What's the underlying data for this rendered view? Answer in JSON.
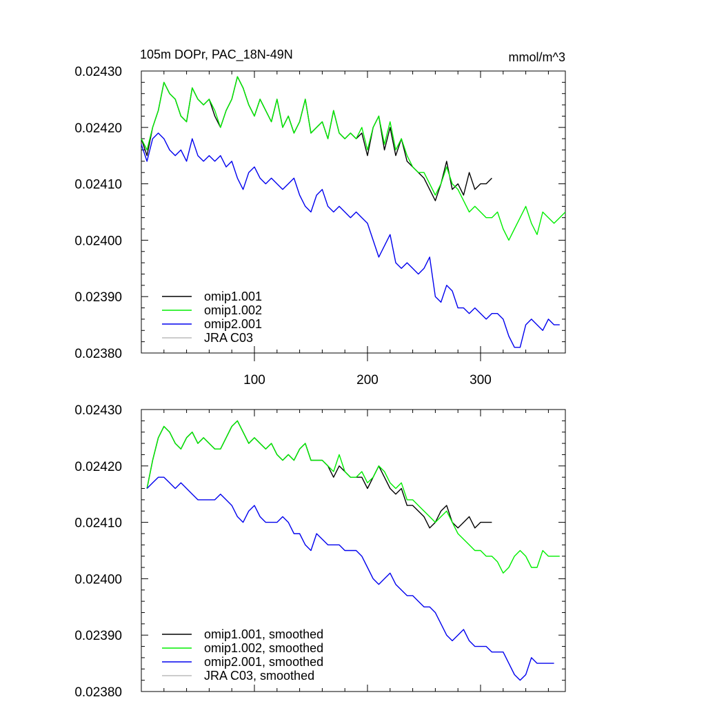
{
  "title": "105m DOPr, PAC_18N-49N",
  "units": "mmol/m^3",
  "chart_data": [
    {
      "type": "line",
      "title": "105m DOPr, PAC_18N-49N",
      "units": "mmol/m^3",
      "xlim": [
        0,
        375
      ],
      "ylim": [
        0.0238,
        0.0243
      ],
      "x_ticks": [
        100,
        200,
        300
      ],
      "x_tick_labels": [
        "100",
        "200",
        "300"
      ],
      "y_ticks": [
        0.0238,
        0.0239,
        0.024,
        0.0241,
        0.0242,
        0.0243
      ],
      "y_tick_labels": [
        "0.02380",
        "0.02390",
        "0.02400",
        "0.02410",
        "0.02420",
        "0.02430"
      ],
      "legend_position": "bottom-left",
      "series": [
        {
          "name": "omip1.001",
          "color": "#000000",
          "x": [
            0,
            5,
            10,
            15,
            20,
            25,
            30,
            35,
            40,
            45,
            50,
            55,
            60,
            65,
            70,
            75,
            80,
            85,
            90,
            95,
            100,
            105,
            110,
            115,
            120,
            125,
            130,
            135,
            140,
            145,
            150,
            155,
            160,
            165,
            170,
            175,
            180,
            185,
            190,
            195,
            200,
            205,
            210,
            215,
            220,
            225,
            230,
            235,
            240,
            245,
            250,
            255,
            260,
            265,
            270,
            275,
            280,
            285,
            290,
            295,
            300,
            305,
            310
          ],
          "y": [
            0.02418,
            0.02415,
            0.0242,
            0.02423,
            0.02428,
            0.02426,
            0.02425,
            0.02422,
            0.02421,
            0.02427,
            0.02425,
            0.02424,
            0.02425,
            0.02422,
            0.0242,
            0.02423,
            0.02425,
            0.02429,
            0.02427,
            0.02424,
            0.02422,
            0.02425,
            0.02423,
            0.02421,
            0.02425,
            0.0242,
            0.02422,
            0.02419,
            0.02421,
            0.02425,
            0.02419,
            0.0242,
            0.02421,
            0.02418,
            0.02423,
            0.02419,
            0.02418,
            0.02419,
            0.02418,
            0.02419,
            0.02415,
            0.0242,
            0.02422,
            0.02416,
            0.0242,
            0.02415,
            0.02418,
            0.02414,
            0.02413,
            0.02412,
            0.02411,
            0.02409,
            0.02407,
            0.0241,
            0.02414,
            0.02409,
            0.0241,
            0.02408,
            0.02412,
            0.02409,
            0.0241,
            0.0241,
            0.02411
          ]
        },
        {
          "name": "omip1.002",
          "color": "#00ee00",
          "x": [
            0,
            5,
            10,
            15,
            20,
            25,
            30,
            35,
            40,
            45,
            50,
            55,
            60,
            65,
            70,
            75,
            80,
            85,
            90,
            95,
            100,
            105,
            110,
            115,
            120,
            125,
            130,
            135,
            140,
            145,
            150,
            155,
            160,
            165,
            170,
            175,
            180,
            185,
            190,
            195,
            200,
            205,
            210,
            215,
            220,
            225,
            230,
            235,
            240,
            245,
            250,
            255,
            260,
            265,
            270,
            275,
            280,
            285,
            290,
            295,
            300,
            305,
            310,
            315,
            320,
            325,
            330,
            335,
            340,
            345,
            350,
            355,
            360,
            365,
            370,
            375
          ],
          "y": [
            0.02418,
            0.02416,
            0.0242,
            0.02423,
            0.02428,
            0.02426,
            0.02425,
            0.02422,
            0.02421,
            0.02427,
            0.02425,
            0.02424,
            0.02425,
            0.02423,
            0.0242,
            0.02423,
            0.02425,
            0.02429,
            0.02427,
            0.02424,
            0.02422,
            0.02425,
            0.02423,
            0.02421,
            0.02425,
            0.0242,
            0.02422,
            0.02419,
            0.02421,
            0.02425,
            0.02419,
            0.0242,
            0.02421,
            0.02418,
            0.02423,
            0.02419,
            0.02418,
            0.02419,
            0.02418,
            0.0242,
            0.02416,
            0.0242,
            0.02422,
            0.02417,
            0.02421,
            0.02416,
            0.02418,
            0.02415,
            0.02413,
            0.02412,
            0.02412,
            0.0241,
            0.02408,
            0.0241,
            0.02413,
            0.0241,
            0.02409,
            0.02407,
            0.02405,
            0.02406,
            0.02405,
            0.02404,
            0.02404,
            0.02405,
            0.02402,
            0.024,
            0.02402,
            0.02404,
            0.02406,
            0.02403,
            0.02401,
            0.02405,
            0.02404,
            0.02403,
            0.02404,
            0.02405
          ]
        },
        {
          "name": "omip2.001",
          "color": "#0000ee",
          "x": [
            0,
            5,
            10,
            15,
            20,
            25,
            30,
            35,
            40,
            45,
            50,
            55,
            60,
            65,
            70,
            75,
            80,
            85,
            90,
            95,
            100,
            105,
            110,
            115,
            120,
            125,
            130,
            135,
            140,
            145,
            150,
            155,
            160,
            165,
            170,
            175,
            180,
            185,
            190,
            195,
            200,
            205,
            210,
            215,
            220,
            225,
            230,
            235,
            240,
            245,
            250,
            255,
            260,
            265,
            270,
            275,
            280,
            285,
            290,
            295,
            300,
            305,
            310,
            315,
            320,
            325,
            330,
            335,
            340,
            345,
            350,
            355,
            360,
            365,
            370
          ],
          "y": [
            0.02417,
            0.02414,
            0.02418,
            0.02419,
            0.02418,
            0.02416,
            0.02415,
            0.02416,
            0.02414,
            0.02418,
            0.02415,
            0.02414,
            0.02415,
            0.02414,
            0.02415,
            0.02413,
            0.02414,
            0.02411,
            0.02409,
            0.02412,
            0.02413,
            0.02411,
            0.0241,
            0.02411,
            0.0241,
            0.02409,
            0.0241,
            0.02411,
            0.02408,
            0.02406,
            0.02405,
            0.02408,
            0.02409,
            0.02406,
            0.02405,
            0.02406,
            0.02405,
            0.02404,
            0.02405,
            0.02404,
            0.02403,
            0.024,
            0.02397,
            0.02399,
            0.02401,
            0.02396,
            0.02395,
            0.02396,
            0.02395,
            0.02394,
            0.02395,
            0.02397,
            0.0239,
            0.02389,
            0.02392,
            0.02391,
            0.02388,
            0.02388,
            0.02387,
            0.02388,
            0.02387,
            0.02386,
            0.02387,
            0.02387,
            0.02386,
            0.02383,
            0.02381,
            0.02381,
            0.02385,
            0.02386,
            0.02385,
            0.02384,
            0.02386,
            0.02385,
            0.02385
          ]
        },
        {
          "name": "JRA C03",
          "color": "#bbbbbb",
          "x": [],
          "y": []
        }
      ]
    },
    {
      "type": "line",
      "xlim": [
        0,
        375
      ],
      "ylim": [
        0.0238,
        0.0243
      ],
      "y_ticks": [
        0.0238,
        0.0239,
        0.024,
        0.0241,
        0.0242,
        0.0243
      ],
      "y_tick_labels": [
        "0.02380",
        "0.02390",
        "0.02400",
        "0.02410",
        "0.02420",
        "0.02430"
      ],
      "legend_position": "bottom-left",
      "series": [
        {
          "name": "omip1.001, smoothed",
          "color": "#000000",
          "x": [
            5,
            10,
            15,
            20,
            25,
            30,
            35,
            40,
            45,
            50,
            55,
            60,
            65,
            70,
            75,
            80,
            85,
            90,
            95,
            100,
            105,
            110,
            115,
            120,
            125,
            130,
            135,
            140,
            145,
            150,
            155,
            160,
            165,
            170,
            175,
            180,
            185,
            190,
            195,
            200,
            205,
            210,
            215,
            220,
            225,
            230,
            235,
            240,
            245,
            250,
            255,
            260,
            265,
            270,
            275,
            280,
            285,
            290,
            295,
            300,
            305,
            310
          ],
          "y": [
            0.02416,
            0.02421,
            0.02425,
            0.02427,
            0.02426,
            0.02424,
            0.02423,
            0.02425,
            0.02426,
            0.02424,
            0.02425,
            0.02424,
            0.02423,
            0.02423,
            0.02425,
            0.02427,
            0.02428,
            0.02426,
            0.02424,
            0.02425,
            0.02424,
            0.02423,
            0.02424,
            0.02422,
            0.02421,
            0.02422,
            0.02421,
            0.02423,
            0.02424,
            0.02421,
            0.02421,
            0.02421,
            0.0242,
            0.02418,
            0.0242,
            0.02419,
            0.02418,
            0.02418,
            0.02418,
            0.02416,
            0.02418,
            0.0242,
            0.02418,
            0.02416,
            0.02415,
            0.02416,
            0.02413,
            0.02413,
            0.02412,
            0.02411,
            0.02409,
            0.0241,
            0.02412,
            0.02413,
            0.0241,
            0.02409,
            0.0241,
            0.02411,
            0.02409,
            0.0241,
            0.0241,
            0.0241
          ]
        },
        {
          "name": "omip1.002, smoothed",
          "color": "#00ee00",
          "x": [
            5,
            10,
            15,
            20,
            25,
            30,
            35,
            40,
            45,
            50,
            55,
            60,
            65,
            70,
            75,
            80,
            85,
            90,
            95,
            100,
            105,
            110,
            115,
            120,
            125,
            130,
            135,
            140,
            145,
            150,
            155,
            160,
            165,
            170,
            175,
            180,
            185,
            190,
            195,
            200,
            205,
            210,
            215,
            220,
            225,
            230,
            235,
            240,
            245,
            250,
            255,
            260,
            265,
            270,
            275,
            280,
            285,
            290,
            295,
            300,
            305,
            310,
            315,
            320,
            325,
            330,
            335,
            340,
            345,
            350,
            355,
            360,
            365,
            370
          ],
          "y": [
            0.02416,
            0.02421,
            0.02425,
            0.02427,
            0.02426,
            0.02424,
            0.02423,
            0.02425,
            0.02426,
            0.02424,
            0.02425,
            0.02424,
            0.02423,
            0.02423,
            0.02425,
            0.02427,
            0.02428,
            0.02426,
            0.02424,
            0.02425,
            0.02424,
            0.02423,
            0.02424,
            0.02422,
            0.02421,
            0.02422,
            0.02421,
            0.02423,
            0.02424,
            0.02421,
            0.02421,
            0.02421,
            0.0242,
            0.02419,
            0.02422,
            0.02419,
            0.02418,
            0.02418,
            0.02419,
            0.02417,
            0.02418,
            0.0242,
            0.02419,
            0.02417,
            0.02416,
            0.02417,
            0.02414,
            0.02414,
            0.02413,
            0.02412,
            0.02411,
            0.0241,
            0.02411,
            0.02412,
            0.0241,
            0.02408,
            0.02407,
            0.02406,
            0.02405,
            0.02405,
            0.02404,
            0.02404,
            0.02403,
            0.02401,
            0.02402,
            0.02404,
            0.02405,
            0.02404,
            0.02402,
            0.02402,
            0.02405,
            0.02404,
            0.02404,
            0.02404
          ]
        },
        {
          "name": "omip2.001, smoothed",
          "color": "#0000ee",
          "x": [
            5,
            10,
            15,
            20,
            25,
            30,
            35,
            40,
            45,
            50,
            55,
            60,
            65,
            70,
            75,
            80,
            85,
            90,
            95,
            100,
            105,
            110,
            115,
            120,
            125,
            130,
            135,
            140,
            145,
            150,
            155,
            160,
            165,
            170,
            175,
            180,
            185,
            190,
            195,
            200,
            205,
            210,
            215,
            220,
            225,
            230,
            235,
            240,
            245,
            250,
            255,
            260,
            265,
            270,
            275,
            280,
            285,
            290,
            295,
            300,
            305,
            310,
            315,
            320,
            325,
            330,
            335,
            340,
            345,
            350,
            355,
            360,
            365
          ],
          "y": [
            0.02416,
            0.02417,
            0.02418,
            0.02418,
            0.02417,
            0.02416,
            0.02417,
            0.02416,
            0.02415,
            0.02414,
            0.02414,
            0.02414,
            0.02414,
            0.02415,
            0.02414,
            0.02413,
            0.02411,
            0.0241,
            0.02412,
            0.02413,
            0.02411,
            0.0241,
            0.0241,
            0.0241,
            0.02411,
            0.0241,
            0.02408,
            0.02408,
            0.02406,
            0.02405,
            0.02408,
            0.02407,
            0.02406,
            0.02406,
            0.02406,
            0.02405,
            0.02405,
            0.02405,
            0.02404,
            0.02402,
            0.024,
            0.02399,
            0.024,
            0.02401,
            0.02399,
            0.02398,
            0.02397,
            0.02397,
            0.02396,
            0.02395,
            0.02395,
            0.02394,
            0.02392,
            0.0239,
            0.02389,
            0.0239,
            0.02391,
            0.02389,
            0.02388,
            0.02388,
            0.02388,
            0.02387,
            0.02387,
            0.02387,
            0.02385,
            0.02383,
            0.02382,
            0.02383,
            0.02386,
            0.02385,
            0.02385,
            0.02385,
            0.02385
          ]
        },
        {
          "name": "JRA C03, smoothed",
          "color": "#bbbbbb",
          "x": [],
          "y": []
        }
      ]
    }
  ]
}
